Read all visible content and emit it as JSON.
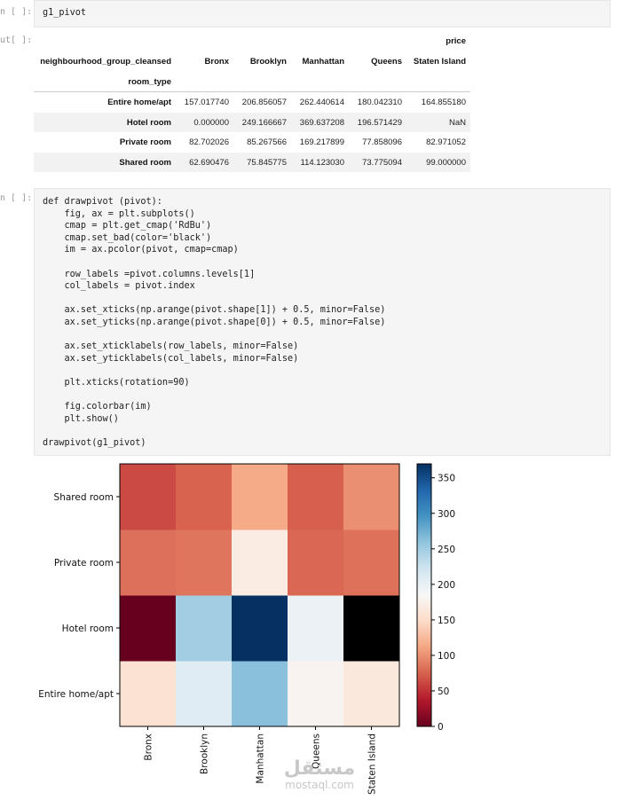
{
  "cells": [
    {
      "prompt": "n [ ]:",
      "code": [
        [
          "g1_pivot"
        ]
      ]
    },
    {
      "prompt": "ut[ ]:",
      "table": {
        "value_header": "price",
        "columns_name": "neighbourhood_group_cleansed",
        "columns": [
          "Bronx",
          "Brooklyn",
          "Manhattan",
          "Queens",
          "Staten Island"
        ],
        "index_name": "room_type",
        "rows": [
          [
            "Entire home/apt",
            "157.017740",
            "206.856057",
            "262.440614",
            "180.042310",
            "164.855180"
          ],
          [
            "Hotel room",
            "0.000000",
            "249.166667",
            "369.637208",
            "196.571429",
            "NaN"
          ],
          [
            "Private room",
            "82.702026",
            "85.267566",
            "169.217899",
            "77.858096",
            "82.971052"
          ],
          [
            "Shared room",
            "62.690476",
            "75.845775",
            "114.123030",
            "73.775094",
            "99.000000"
          ]
        ]
      }
    },
    {
      "prompt": "n [ ]:",
      "code": [
        [
          "def drawpivot (pivot):",
          "    fig, ax = plt.subplots()",
          "    cmap = plt.get_cmap('RdBu')",
          "    cmap.set_bad(color='black')",
          "    im = ax.pcolor(pivot, cmap=cmap)"
        ],
        [
          "    row_labels =pivot.columns.levels[1]",
          "    col_labels = pivot.index"
        ],
        [
          "    ax.set_xticks(np.arange(pivot.shape[1]) + 0.5, minor=False)",
          "    ax.set_yticks(np.arange(pivot.shape[0]) + 0.5, minor=False)"
        ],
        [
          "    ax.set_xticklabels(row_labels, minor=False)",
          "    ax.set_yticklabels(col_labels, minor=False)"
        ],
        [
          "    plt.xticks(rotation=90)"
        ],
        [
          "    fig.colorbar(im)",
          "    plt.show()"
        ],
        [
          "drawpivot(g1_pivot)"
        ]
      ]
    }
  ],
  "chart_data": {
    "type": "heatmap",
    "x": [
      "Bronx",
      "Brooklyn",
      "Manhattan",
      "Queens",
      "Staten Island"
    ],
    "y": [
      "Entire home/apt",
      "Hotel room",
      "Private room",
      "Shared room"
    ],
    "values": [
      [
        157.01774,
        206.856057,
        262.440614,
        180.04231,
        164.85518
      ],
      [
        0,
        249.166667,
        369.637208,
        196.571429,
        null
      ],
      [
        82.702026,
        85.267566,
        169.217899,
        77.858096,
        82.971052
      ],
      [
        62.690476,
        75.845775,
        114.12303,
        73.775094,
        99
      ]
    ],
    "colormap": [
      "#67001f",
      "#b2182b",
      "#d6604d",
      "#f4a582",
      "#fddbc7",
      "#f7f7f7",
      "#d1e5f0",
      "#92c5de",
      "#4393c3",
      "#2166ac",
      "#053061"
    ],
    "null_color": "#000000",
    "zlim": [
      0,
      369.637208
    ],
    "zticks": [
      0,
      50,
      100,
      150,
      200,
      250,
      300,
      350
    ]
  },
  "watermark": [
    "مستقل",
    "mostaql.com"
  ]
}
